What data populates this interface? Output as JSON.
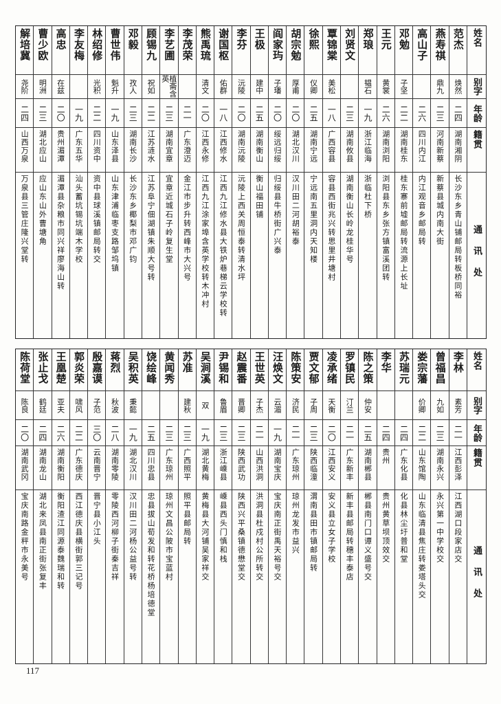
{
  "headers": {
    "name": "姓名",
    "alias": "别字",
    "age": "年龄",
    "origin": "籍贯",
    "address": "通讯处"
  },
  "upper_table": [
    {
      "name": "范杰",
      "alias": "焕然",
      "age": "二四",
      "origin": "湖南湘阴",
      "address": "长沙东乡青山铺邮局转板桥同裕"
    },
    {
      "name": "燕寿祺",
      "alias": "鼎九",
      "age": "二三",
      "origin": "河南新蔡",
      "address": "新蔡县城内南大街"
    },
    {
      "name": "高山子",
      "alias": "",
      "age": "二六",
      "origin": "四川内江",
      "address": "内江观音乡邮局转"
    },
    {
      "name": "邓勉",
      "alias": "子坚",
      "age": "二二",
      "origin": "湖南桂东",
      "address": "桂东寨前墟邮局转流源上长址"
    },
    {
      "name": "王元",
      "alias": "黄裳",
      "age": "二六",
      "origin": "湖南浏阳",
      "address": "浏阳县东乡张方镇富溪团转"
    },
    {
      "name": "郑琅",
      "alias": "韫石",
      "age": "一九",
      "origin": "浙江临海",
      "address": "浙临杜下桥"
    },
    {
      "name": "刘贤文",
      "alias": "",
      "age": "二三",
      "origin": "湖南攸县",
      "address": "湖南衡山长岭龙桂华号"
    },
    {
      "name": "覃锦棠",
      "alias": "美松",
      "age": "一八",
      "origin": "广西容县",
      "address": "容县西街兆兴转思里井塘村"
    },
    {
      "name": "徐熙",
      "alias": "仪卿",
      "age": "二五",
      "origin": "湖南宁远",
      "address": "宁远南五里洞内天知楼"
    },
    {
      "name": "胡宗勉",
      "alias": "厚甫",
      "age": "二〇",
      "origin": "湖北汉川",
      "address": "汉川田二河胡裕泰"
    },
    {
      "name": "阎家玙",
      "alias": "子璠",
      "age": "二〇",
      "origin": "绥远归绥",
      "address": "归绥县牛桥街广兴泰"
    },
    {
      "name": "王极",
      "alias": "建中",
      "age": "二五",
      "origin": "湖南衡山",
      "address": "衡山福田铺"
    },
    {
      "name": "李芬",
      "alias": "沅陵",
      "age": "二〇",
      "origin": "湖南沅陵",
      "address": "沅陵上西关周恒泰转清水坪"
    },
    {
      "name": "谢国枢",
      "alias": "佑群",
      "age": "一八",
      "origin": "江西修水",
      "address": "江西九江修水县大铁炉巷梯云学校转"
    },
    {
      "name": "熊禹琉",
      "alias": "清文",
      "age": "二〇",
      "origin": "江西永修",
      "address": "江西九江涂家埠含英学校转木冲村"
    },
    {
      "name": "李茂荣",
      "alias": "",
      "age": "二一",
      "origin": "广东澄迈",
      "address": "金江市步升转西峰市大兴号"
    },
    {
      "name": "李艺圃",
      "alias": "植斋含英",
      "age": "二三",
      "origin": "湖南宜章",
      "address": "宜章近城石子岭复生堂"
    },
    {
      "name": "顾锡九",
      "alias": "祝如",
      "age": "二二",
      "origin": "江苏涟水",
      "address": "江苏阜宁佃湖镇朱顺大号转"
    },
    {
      "name": "邓毅",
      "alias": "孜人",
      "age": "二三",
      "origin": "湖南长沙",
      "address": "长沙东乡椰梨市邓广钧"
    },
    {
      "name": "曹世伟",
      "alias": "魁升",
      "age": "一九",
      "origin": "山东泽县",
      "address": "山东津浦临枣支路邹坞镇"
    },
    {
      "name": "林绍修",
      "alias": "光积",
      "age": "二二",
      "origin": "四川资中",
      "address": "资中县球溪镇邮局转交"
    },
    {
      "name": "李友梅",
      "alias": "",
      "age": "一九",
      "origin": "广东五华",
      "address": "汕头蓄坑锡坑端木学校"
    },
    {
      "name": "高忠",
      "alias": "在兹",
      "age": "二〇",
      "origin": "贵州湄潭",
      "address": "湄潭县杂粮市同兴祥廖海山转"
    },
    {
      "name": "曹少欧",
      "alias": "明洲",
      "age": "二三",
      "origin": "湖北应山",
      "address": "应山东山外曹塘角"
    },
    {
      "name": "解培冀",
      "alias": "尧阶",
      "age": "二四",
      "origin": "山西万泉",
      "address": "万泉县三管庄隆兴堂转"
    }
  ],
  "lower_table": [
    {
      "name": "李林",
      "alias": "素芳",
      "age": "二一",
      "origin": "江西彭泽",
      "address": "江西湖口段家店交"
    },
    {
      "name": "曾福昌",
      "alias": "九如",
      "age": "二三",
      "origin": "湖南永兴",
      "address": "永兴第一中学校交"
    },
    {
      "name": "娄宗藩",
      "alias": "价卿",
      "age": "二二",
      "origin": "山东馆陶",
      "address": "山东临清县焦庄转娄塔头交"
    },
    {
      "name": "苏瑞元",
      "alias": "",
      "age": "二四",
      "origin": "广东化县",
      "address": "化县林尘圩普和堂"
    },
    {
      "name": "李华",
      "alias": "",
      "age": "二四",
      "origin": "贵州",
      "address": "贵州黄草坝顶效交"
    },
    {
      "name": "陈之策",
      "alias": "仲安",
      "age": "二五",
      "origin": "湖南郴县",
      "address": "郴县南门口谭义盛号交"
    },
    {
      "name": "罗镇民",
      "alias": "汀兰",
      "age": "二一",
      "origin": "广东新丰",
      "address": "新丰县邮局转穗丰泰店"
    },
    {
      "name": "凌承绪",
      "alias": "天衡",
      "age": "二〇",
      "origin": "江西安义",
      "address": "安义县立女子学校"
    },
    {
      "name": "贾文郁",
      "alias": "子周",
      "age": "二三",
      "origin": "陕西临潼",
      "address": "渭南县田市镇邮局转"
    },
    {
      "name": "陈策安",
      "alias": "济民",
      "age": "二一",
      "origin": "广东琼州",
      "address": "琼州龙发市益兴"
    },
    {
      "name": "汪焕文",
      "alias": "云湄",
      "age": "一九",
      "origin": "湖南宝庆",
      "address": "宝庆南正街禹天裕号交"
    },
    {
      "name": "王世英",
      "alias": "子杰",
      "age": "二一",
      "origin": "山西洪洞",
      "address": "洪洞县杜戍村公所转交"
    },
    {
      "name": "赵震番",
      "alias": "晋卿",
      "age": "二三",
      "origin": "陕西武功",
      "address": "陕西兴平桑镇德懋堂交"
    },
    {
      "name": "尹锡和",
      "alias": "鲁眉",
      "age": "二三",
      "origin": "浙江嵊县",
      "address": "嵊县西头门慎和栈"
    },
    {
      "name": "吴涧溪",
      "alias": "双",
      "age": "一九",
      "origin": "湖北黄梅",
      "address": "黄梅县大河铺吴家祥交"
    },
    {
      "name": "苏准",
      "alias": "建秋",
      "age": "二三",
      "origin": "广西照平",
      "address": "照平县邮局转"
    },
    {
      "name": "黄闻秀",
      "alias": "",
      "age": "二三",
      "origin": "广东琼州",
      "address": "琼州文昌公陂市宝蓝村"
    },
    {
      "name": "饶绘峰",
      "alias": "",
      "age": "二五",
      "origin": "四川忠县",
      "address": "忠县拔山荀发和转花桥杨培德堂"
    },
    {
      "name": "吴积英",
      "alias": "秉懿",
      "age": "一九",
      "origin": "湖北汉川",
      "address": "汉川田二河杨公益号转"
    },
    {
      "name": "蒋烈",
      "alias": "秋波",
      "age": "二八",
      "origin": "湖南零陵",
      "address": "零陵西河柳子街秦吉祥"
    },
    {
      "name": "殷嘉谟",
      "alias": "子范",
      "age": "三〇",
      "origin": "云南晋宁",
      "address": "晋宁县小江头"
    },
    {
      "name": "郭炎荣",
      "alias": "啸风",
      "age": "二二",
      "origin": "广东德庆",
      "address": "西江德庆县横街郭三记号"
    },
    {
      "name": "王凰楚",
      "alias": "亚夫",
      "age": "二六",
      "origin": "湖南衡阳",
      "address": "衡阳渣江同源泰魏瑞和转"
    },
    {
      "name": "张止戈",
      "alias": "鹤廷",
      "age": "二四",
      "origin": "湖南龙山",
      "address": "湖北来凤县南正街张复丰"
    },
    {
      "name": "陈荷堂",
      "alias": "陈良",
      "age": "二〇",
      "origin": "湖南武冈",
      "address": "宝庆南路金秤市永美号"
    }
  ],
  "page_number": "117"
}
